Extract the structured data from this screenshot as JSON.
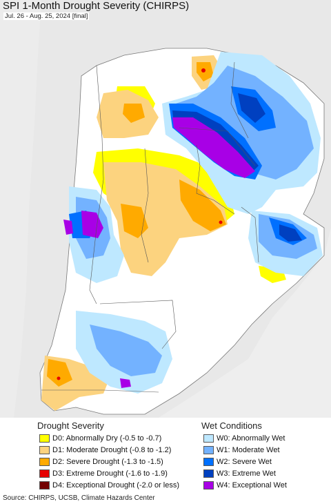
{
  "title": "SPI 1-Month Drought Severity (CHIRPS)",
  "subtitle": "Jul. 26 - Aug. 25, 2024 [final]",
  "legend": {
    "drought_title": "Drought Severity",
    "wet_title": "Wet Conditions",
    "drought_items": [
      {
        "label": "D0: Abnormally Dry (-0.5 to -0.7)",
        "color": "#ffff00"
      },
      {
        "label": "D1: Moderate Drought (-0.8 to -1.2)",
        "color": "#fcd37f"
      },
      {
        "label": "D2: Severe Drought (-1.3 to -1.5)",
        "color": "#ffaa00"
      },
      {
        "label": "D3: Extreme Drought (-1.6 to -1.9)",
        "color": "#e60000"
      },
      {
        "label": "D4: Exceptional Drought (-2.0 or less)",
        "color": "#730000"
      }
    ],
    "wet_items": [
      {
        "label": "W0: Abnormally Wet",
        "color": "#bee8ff"
      },
      {
        "label": "W1: Moderate Wet",
        "color": "#73b2ff"
      },
      {
        "label": "W2: Severe Wet",
        "color": "#0070ff"
      },
      {
        "label": "W3: Extreme Wet",
        "color": "#0040c0"
      },
      {
        "label": "W4: Exceptional Wet",
        "color": "#a800e6"
      }
    ]
  },
  "source": "Source: CHIRPS, UCSB, Climate Hazards Center"
}
